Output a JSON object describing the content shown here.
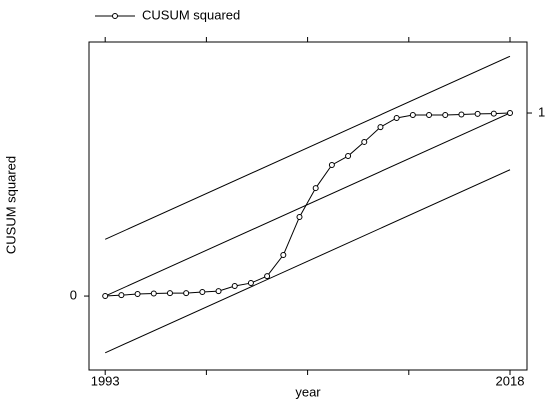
{
  "chart_data": {
    "type": "line",
    "y_label": "CUSUM squared",
    "x_label": "year",
    "x": [
      1993,
      1994,
      1995,
      1996,
      1997,
      1998,
      1999,
      2000,
      2001,
      2002,
      2003,
      2004,
      2005,
      2006,
      2007,
      2008,
      2009,
      2010,
      2011,
      2012,
      2013,
      2014,
      2015,
      2016,
      2017,
      2018
    ],
    "series": [
      {
        "name": "CUSUM squared",
        "color": "#000000",
        "values": [
          0,
          0.005,
          0.011,
          0.014,
          0.016,
          0.016,
          0.022,
          0.027,
          0.055,
          0.071,
          0.109,
          0.224,
          0.432,
          0.59,
          0.716,
          0.765,
          0.842,
          0.923,
          0.973,
          0.989,
          0.989,
          0.989,
          0.992,
          0.995,
          0.997,
          1
        ]
      }
    ],
    "reference_lines": [
      {
        "x": [
          1993,
          2018
        ],
        "values": [
          0.31,
          1.31
        ]
      },
      {
        "x": [
          1993,
          2018
        ],
        "values": [
          0,
          1
        ]
      },
      {
        "x": [
          1993,
          2018
        ],
        "values": [
          -0.31,
          0.69
        ]
      }
    ],
    "xlim": [
      1992,
      2019.05
    ],
    "xticks": [
      1993,
      2018
    ],
    "minor_xticks": [
      1999.25,
      2005.5,
      2011.75
    ],
    "ylim": [
      -0.404,
      1.388
    ],
    "yticks": [
      0
    ],
    "y2lim": [
      -0.404,
      1.388
    ],
    "y2ticks": [
      1
    ],
    "legend": "top-left"
  }
}
